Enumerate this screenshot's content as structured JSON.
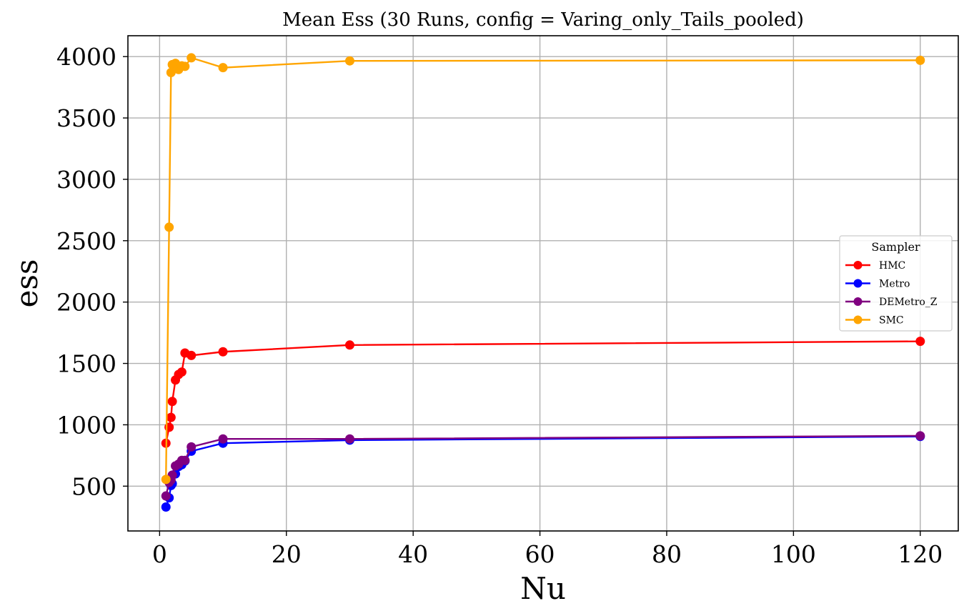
{
  "chart_data": {
    "type": "line",
    "title": "Mean Ess (30 Runs, config = Varing_only_Tails_pooled)",
    "xlabel": "Nu",
    "ylabel": "ess",
    "xlim": [
      -5,
      126
    ],
    "ylim": [
      135,
      4170
    ],
    "x_ticks": [
      0,
      20,
      40,
      60,
      80,
      100,
      120
    ],
    "x_tick_labels": [
      "0",
      "20",
      "40",
      "60",
      "80",
      "100",
      "120"
    ],
    "y_ticks": [
      500,
      1000,
      1500,
      2000,
      2500,
      3000,
      3500,
      4000
    ],
    "y_tick_labels": [
      "500",
      "1000",
      "1500",
      "2000",
      "2500",
      "3000",
      "3500",
      "4000"
    ],
    "grid": true,
    "legend": {
      "title": "Sampler",
      "placement": "center-right"
    },
    "series": [
      {
        "name": "HMC",
        "color": "#ff0000",
        "x": [
          1,
          1.5,
          1.8,
          2,
          2.5,
          3,
          3.5,
          4,
          5,
          10,
          30,
          120
        ],
        "y": [
          850,
          980,
          1060,
          1190,
          1365,
          1410,
          1430,
          1585,
          1565,
          1595,
          1650,
          1680
        ]
      },
      {
        "name": "Metro",
        "color": "#0000ff",
        "x": [
          1,
          1.5,
          1.8,
          2,
          2.5,
          3,
          3.5,
          4,
          5,
          10,
          30,
          120
        ],
        "y": [
          330,
          405,
          505,
          520,
          600,
          660,
          675,
          705,
          785,
          850,
          875,
          905
        ]
      },
      {
        "name": "DEMetro_Z",
        "color": "#800080",
        "x": [
          1,
          1.5,
          1.8,
          2,
          2.5,
          3,
          3.5,
          4,
          5,
          10,
          30,
          120
        ],
        "y": [
          420,
          530,
          550,
          590,
          665,
          680,
          710,
          710,
          820,
          885,
          885,
          910
        ]
      },
      {
        "name": "SMC",
        "color": "#ffa500",
        "x": [
          1,
          1.5,
          1.8,
          2,
          2.5,
          3,
          3.5,
          4,
          5,
          10,
          30,
          120
        ],
        "y": [
          555,
          2610,
          3870,
          3935,
          3945,
          3895,
          3925,
          3920,
          3990,
          3910,
          3965,
          3970
        ]
      }
    ]
  }
}
